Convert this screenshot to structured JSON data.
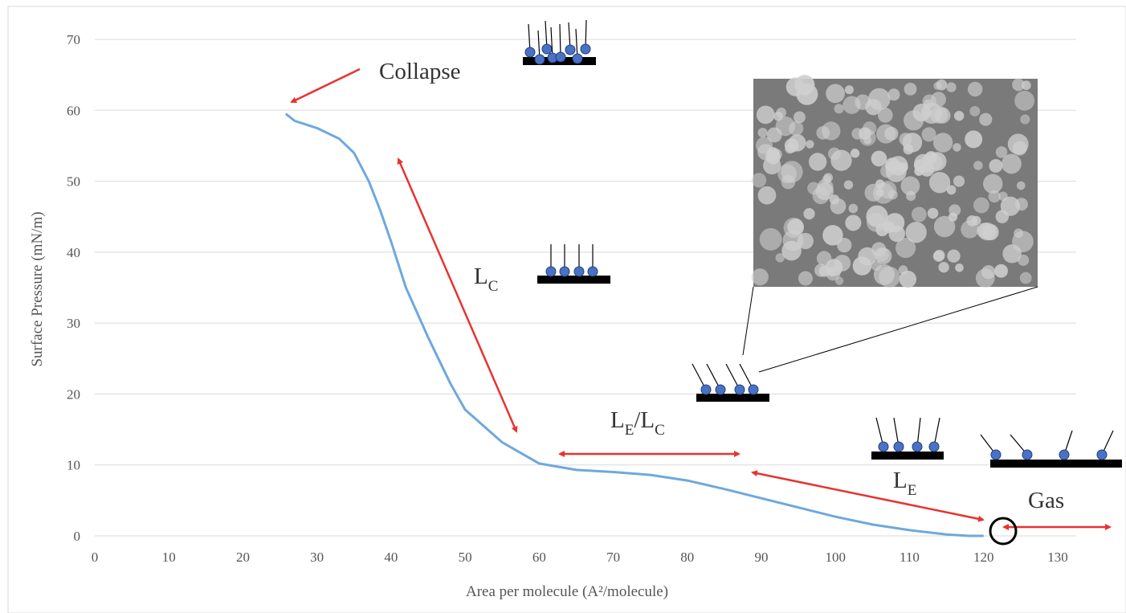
{
  "chart_data": {
    "type": "line",
    "x_label": "Area per molecule (A²/molecule)",
    "y_label": "Surface Pressure (mN/m)",
    "xlim": [
      0,
      132.5
    ],
    "ylim": [
      0,
      70
    ],
    "xticks": [
      0,
      10,
      20,
      30,
      40,
      50,
      60,
      70,
      80,
      90,
      100,
      110,
      120,
      130
    ],
    "yticks": [
      0,
      10,
      20,
      30,
      40,
      50,
      60,
      70
    ],
    "grid": true,
    "x": [
      25.8,
      27,
      30,
      33,
      35,
      37,
      38.5,
      40,
      42,
      45,
      48,
      50,
      55,
      60,
      65,
      70,
      75,
      80,
      85,
      90,
      95,
      100,
      105,
      110,
      115,
      118,
      120
    ],
    "series": [
      {
        "color": "#6fa8dc",
        "values": [
          59.5,
          58.5,
          57.5,
          56,
          54,
          50,
          46,
          41.5,
          35,
          28,
          21.5,
          17.8,
          13.2,
          10.2,
          9.3,
          9,
          8.6,
          7.8,
          6.6,
          5.3,
          4,
          2.7,
          1.6,
          0.8,
          0.2,
          0,
          0
        ]
      }
    ],
    "annotations": [
      {
        "parts": [
          {
            "text": "Collapse"
          }
        ]
      },
      {
        "parts": [
          {
            "text": "L"
          },
          {
            "text": "C",
            "sub": true
          }
        ]
      },
      {
        "parts": [
          {
            "text": "L"
          },
          {
            "text": "E",
            "sub": true
          },
          {
            "text": "/L"
          },
          {
            "text": "C",
            "sub": true
          }
        ]
      },
      {
        "parts": [
          {
            "text": "L"
          },
          {
            "text": "E",
            "sub": true
          }
        ]
      },
      {
        "parts": [
          {
            "text": "Gas"
          }
        ]
      }
    ]
  }
}
